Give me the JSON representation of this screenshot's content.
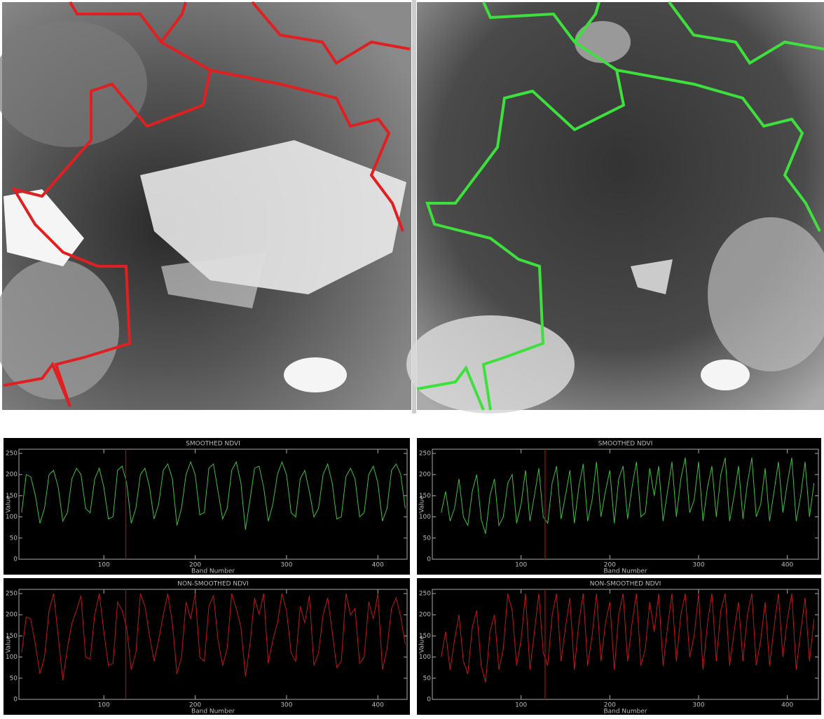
{
  "chart_data": [
    {
      "type": "line",
      "title": "SMOOTHED NDVI",
      "xlabel": "Band Number",
      "ylabel": "Value",
      "color": "#3fbf3f",
      "x": [
        10,
        15,
        20,
        25,
        30,
        35,
        40,
        45,
        50,
        55,
        60,
        65,
        70,
        75,
        80,
        85,
        90,
        95,
        100,
        105,
        110,
        115,
        120,
        125,
        130,
        135,
        140,
        145,
        150,
        155,
        160,
        165,
        170,
        175,
        180,
        185,
        190,
        195,
        200,
        205,
        210,
        215,
        220,
        225,
        230,
        235,
        240,
        245,
        250,
        255,
        260,
        265,
        270,
        275,
        280,
        285,
        290,
        295,
        300,
        305,
        310,
        315,
        320,
        325,
        330,
        335,
        340,
        345,
        350,
        355,
        360,
        365,
        370,
        375,
        380,
        385,
        390,
        395,
        400,
        405,
        410,
        415,
        420,
        425,
        430
      ],
      "values": [
        110,
        200,
        195,
        150,
        85,
        120,
        200,
        210,
        170,
        90,
        110,
        190,
        215,
        200,
        120,
        110,
        190,
        215,
        170,
        95,
        100,
        210,
        220,
        180,
        85,
        120,
        200,
        215,
        170,
        95,
        130,
        210,
        225,
        190,
        80,
        120,
        200,
        230,
        200,
        105,
        110,
        215,
        225,
        160,
        95,
        120,
        210,
        230,
        180,
        70,
        140,
        215,
        220,
        170,
        90,
        130,
        200,
        230,
        200,
        110,
        100,
        190,
        210,
        160,
        100,
        120,
        200,
        225,
        180,
        95,
        100,
        195,
        215,
        190,
        100,
        110,
        200,
        220,
        180,
        90,
        120,
        210,
        225,
        200,
        120
      ],
      "xlim": [
        7,
        432
      ],
      "ylim": [
        0,
        260
      ],
      "xticks": [
        100,
        200,
        300,
        400
      ],
      "yticks": [
        0,
        50,
        100,
        150,
        200,
        250
      ],
      "vline": {
        "x": 124,
        "color": "#c00000"
      }
    },
    {
      "type": "line",
      "title": "NON-SMOOTHED NDVI",
      "xlabel": "Band Number",
      "ylabel": "Value",
      "color": "#c01818",
      "x": [
        10,
        15,
        20,
        25,
        30,
        35,
        40,
        45,
        50,
        55,
        60,
        65,
        70,
        75,
        80,
        85,
        90,
        95,
        100,
        105,
        110,
        115,
        120,
        125,
        130,
        135,
        140,
        145,
        150,
        155,
        160,
        165,
        170,
        175,
        180,
        185,
        190,
        195,
        200,
        205,
        210,
        215,
        220,
        225,
        230,
        235,
        240,
        245,
        250,
        255,
        260,
        265,
        270,
        275,
        280,
        285,
        290,
        295,
        300,
        305,
        310,
        315,
        320,
        325,
        330,
        335,
        340,
        345,
        350,
        355,
        360,
        365,
        370,
        375,
        380,
        385,
        390,
        395,
        400,
        405,
        410,
        415,
        420,
        425,
        430
      ],
      "values": [
        110,
        195,
        190,
        130,
        60,
        100,
        210,
        250,
        150,
        45,
        120,
        180,
        210,
        245,
        100,
        95,
        200,
        250,
        160,
        80,
        85,
        230,
        210,
        170,
        70,
        110,
        250,
        220,
        150,
        90,
        140,
        200,
        250,
        180,
        60,
        100,
        230,
        190,
        250,
        100,
        90,
        220,
        245,
        140,
        80,
        120,
        250,
        215,
        170,
        55,
        130,
        240,
        200,
        250,
        85,
        140,
        180,
        250,
        210,
        110,
        90,
        220,
        180,
        245,
        80,
        110,
        200,
        240,
        160,
        75,
        90,
        250,
        200,
        215,
        85,
        100,
        230,
        190,
        250,
        70,
        120,
        215,
        240,
        195,
        130
      ],
      "xlim": [
        7,
        432
      ],
      "ylim": [
        0,
        260
      ],
      "xticks": [
        100,
        200,
        300,
        400
      ],
      "yticks": [
        0,
        50,
        100,
        150,
        200,
        250
      ],
      "vline": {
        "x": 124,
        "color": "#c00000"
      }
    },
    {
      "type": "line",
      "title": "SMOOTHED NDVI",
      "xlabel": "Band Number",
      "ylabel": "Value",
      "color": "#3fbf3f",
      "x": [
        10,
        15,
        20,
        25,
        30,
        35,
        40,
        45,
        50,
        55,
        60,
        65,
        70,
        75,
        80,
        85,
        90,
        95,
        100,
        105,
        110,
        115,
        120,
        125,
        130,
        135,
        140,
        145,
        150,
        155,
        160,
        165,
        170,
        175,
        180,
        185,
        190,
        195,
        200,
        205,
        210,
        215,
        220,
        225,
        230,
        235,
        240,
        245,
        250,
        255,
        260,
        265,
        270,
        275,
        280,
        285,
        290,
        295,
        300,
        305,
        310,
        315,
        320,
        325,
        330,
        335,
        340,
        345,
        350,
        355,
        360,
        365,
        370,
        375,
        380,
        385,
        390,
        395,
        400,
        405,
        410,
        415,
        420,
        425,
        430
      ],
      "values": [
        110,
        160,
        90,
        120,
        190,
        100,
        80,
        160,
        200,
        95,
        60,
        150,
        190,
        80,
        100,
        180,
        200,
        85,
        130,
        210,
        90,
        150,
        215,
        100,
        85,
        180,
        220,
        95,
        150,
        210,
        85,
        170,
        225,
        90,
        140,
        230,
        100,
        160,
        210,
        85,
        190,
        220,
        95,
        170,
        230,
        100,
        110,
        215,
        150,
        220,
        90,
        160,
        230,
        100,
        190,
        240,
        110,
        140,
        230,
        90,
        170,
        220,
        100,
        200,
        240,
        90,
        150,
        220,
        95,
        180,
        240,
        100,
        130,
        215,
        90,
        160,
        230,
        110,
        180,
        240,
        90,
        150,
        230,
        100,
        180
      ],
      "xlim": [
        0,
        435
      ],
      "ylim": [
        0,
        260
      ],
      "xticks": [
        100,
        200,
        300,
        400
      ],
      "yticks": [
        0,
        50,
        100,
        150,
        200,
        250
      ],
      "vline": {
        "x": 127,
        "color": "#c00000"
      }
    },
    {
      "type": "line",
      "title": "NON-SMOOTHED NDVI",
      "xlabel": "Band Number",
      "ylabel": "Value",
      "color": "#c01818",
      "x": [
        10,
        15,
        20,
        25,
        30,
        35,
        40,
        45,
        50,
        55,
        60,
        65,
        70,
        75,
        80,
        85,
        90,
        95,
        100,
        105,
        110,
        115,
        120,
        125,
        130,
        135,
        140,
        145,
        150,
        155,
        160,
        165,
        170,
        175,
        180,
        185,
        190,
        195,
        200,
        205,
        210,
        215,
        220,
        225,
        230,
        235,
        240,
        245,
        250,
        255,
        260,
        265,
        270,
        275,
        280,
        285,
        290,
        295,
        300,
        305,
        310,
        315,
        320,
        325,
        330,
        335,
        340,
        345,
        350,
        355,
        360,
        365,
        370,
        375,
        380,
        385,
        390,
        395,
        400,
        405,
        410,
        415,
        420,
        425,
        430
      ],
      "values": [
        100,
        160,
        70,
        140,
        200,
        90,
        60,
        170,
        210,
        80,
        40,
        160,
        200,
        70,
        120,
        250,
        210,
        80,
        140,
        250,
        70,
        160,
        250,
        110,
        80,
        200,
        250,
        90,
        170,
        240,
        70,
        180,
        250,
        80,
        150,
        250,
        90,
        180,
        230,
        70,
        200,
        250,
        90,
        180,
        250,
        80,
        120,
        230,
        160,
        250,
        80,
        170,
        250,
        90,
        200,
        250,
        100,
        150,
        250,
        70,
        180,
        250,
        90,
        210,
        250,
        80,
        160,
        230,
        90,
        200,
        250,
        80,
        140,
        230,
        80,
        170,
        250,
        100,
        190,
        250,
        70,
        160,
        240,
        90,
        190
      ],
      "xlim": [
        0,
        435
      ],
      "ylim": [
        0,
        260
      ],
      "xticks": [
        100,
        200,
        300,
        400
      ],
      "yticks": [
        0,
        50,
        100,
        150,
        200,
        250
      ],
      "vline": {
        "x": 127,
        "color": "#c00000"
      }
    }
  ]
}
